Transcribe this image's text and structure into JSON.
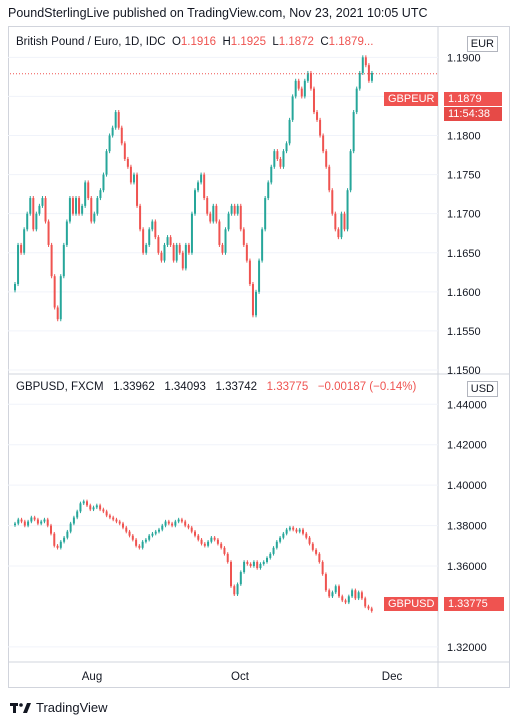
{
  "header": {
    "text": "PoundSterlingLive published on TradingView.com, Nov 23, 2021 10:05 UTC"
  },
  "panel1": {
    "legend_title": "British Pound / Euro, 1D, IDC",
    "o_label": "O",
    "o_value": "1.1916",
    "h_label": "H",
    "h_value": "1.1925",
    "l_label": "L",
    "l_value": "1.1872",
    "c_label": "C",
    "c_value": "1.1879...",
    "currency": "EUR",
    "symbol_tag": "GBPEUR",
    "price_tag": "1.1879",
    "countdown": "11:54:38"
  },
  "panel2": {
    "legend_title": "GBPUSD, FXCM",
    "o_value": "1.33962",
    "h_value": "1.34093",
    "l_value": "1.33742",
    "c_value": "1.33775",
    "change": "−0.00187 (−0.14%)",
    "currency": "USD",
    "symbol_tag": "GBPUSD",
    "price_tag": "1.33775"
  },
  "x_axis": {
    "labels": [
      "Aug",
      "Oct",
      "Dec"
    ]
  },
  "footer": {
    "brand": "TradingView"
  },
  "colors": {
    "up": "#26a69a",
    "down": "#ef5350",
    "text": "#131722",
    "grid": "#e0e3eb",
    "border": "#d1d4dc"
  },
  "chart_data": [
    {
      "type": "candlestick",
      "title": "British Pound / Euro, 1D, IDC",
      "ylim": [
        1.15,
        1.1935
      ],
      "y_ticks": [
        "1.1900",
        "1.1850",
        "1.1800",
        "1.1750",
        "1.1700",
        "1.1650",
        "1.1600",
        "1.1550",
        "1.1500"
      ],
      "y_tick_values": [
        1.19,
        1.185,
        1.18,
        1.175,
        1.17,
        1.165,
        1.16,
        1.155,
        1.15
      ],
      "current_price": 1.1879,
      "closes": [
        1.161,
        1.166,
        1.165,
        1.168,
        1.17,
        1.172,
        1.168,
        1.17,
        1.171,
        1.172,
        1.169,
        1.166,
        1.162,
        1.158,
        1.1565,
        1.162,
        1.166,
        1.169,
        1.172,
        1.17,
        1.172,
        1.17,
        1.171,
        1.174,
        1.172,
        1.169,
        1.17,
        1.172,
        1.173,
        1.175,
        1.178,
        1.18,
        1.181,
        1.183,
        1.181,
        1.179,
        1.177,
        1.176,
        1.174,
        1.175,
        1.171,
        1.168,
        1.165,
        1.166,
        1.168,
        1.169,
        1.167,
        1.165,
        1.164,
        1.166,
        1.167,
        1.166,
        1.164,
        1.166,
        1.165,
        1.163,
        1.166,
        1.165,
        1.17,
        1.173,
        1.174,
        1.175,
        1.172,
        1.17,
        1.169,
        1.171,
        1.169,
        1.166,
        1.165,
        1.168,
        1.17,
        1.171,
        1.17,
        1.171,
        1.168,
        1.166,
        1.164,
        1.161,
        1.157,
        1.16,
        1.164,
        1.168,
        1.172,
        1.174,
        1.176,
        1.178,
        1.177,
        1.176,
        1.178,
        1.179,
        1.182,
        1.185,
        1.187,
        1.186,
        1.185,
        1.187,
        1.188,
        1.186,
        1.183,
        1.182,
        1.18,
        1.178,
        1.176,
        1.173,
        1.17,
        1.168,
        1.167,
        1.17,
        1.168,
        1.173,
        1.178,
        1.183,
        1.186,
        1.188,
        1.19,
        1.189,
        1.187,
        1.188
      ]
    },
    {
      "type": "candlestick",
      "title": "GBPUSD, FXCM",
      "ylim": [
        1.3135,
        1.453
      ],
      "y_ticks": [
        "1.44000",
        "1.42000",
        "1.40000",
        "1.38000",
        "1.36000",
        "1.32000"
      ],
      "y_tick_values": [
        1.44,
        1.42,
        1.4,
        1.38,
        1.36,
        1.32
      ],
      "current_price": 1.33775,
      "closes": [
        1.381,
        1.383,
        1.382,
        1.38,
        1.382,
        1.384,
        1.383,
        1.381,
        1.382,
        1.383,
        1.38,
        1.376,
        1.37,
        1.369,
        1.372,
        1.374,
        1.377,
        1.381,
        1.384,
        1.387,
        1.391,
        1.392,
        1.39,
        1.388,
        1.389,
        1.39,
        1.388,
        1.387,
        1.385,
        1.384,
        1.383,
        1.382,
        1.381,
        1.379,
        1.377,
        1.375,
        1.373,
        1.37,
        1.369,
        1.372,
        1.373,
        1.375,
        1.376,
        1.377,
        1.378,
        1.38,
        1.382,
        1.381,
        1.38,
        1.382,
        1.383,
        1.382,
        1.38,
        1.379,
        1.377,
        1.375,
        1.373,
        1.371,
        1.37,
        1.372,
        1.374,
        1.373,
        1.371,
        1.369,
        1.366,
        1.362,
        1.35,
        1.346,
        1.351,
        1.357,
        1.362,
        1.361,
        1.36,
        1.362,
        1.359,
        1.361,
        1.362,
        1.364,
        1.366,
        1.369,
        1.372,
        1.374,
        1.376,
        1.378,
        1.379,
        1.378,
        1.377,
        1.378,
        1.376,
        1.374,
        1.371,
        1.368,
        1.366,
        1.362,
        1.356,
        1.348,
        1.345,
        1.347,
        1.35,
        1.345,
        1.343,
        1.342,
        1.345,
        1.348,
        1.344,
        1.347,
        1.344,
        1.34,
        1.339,
        1.33775
      ]
    }
  ]
}
